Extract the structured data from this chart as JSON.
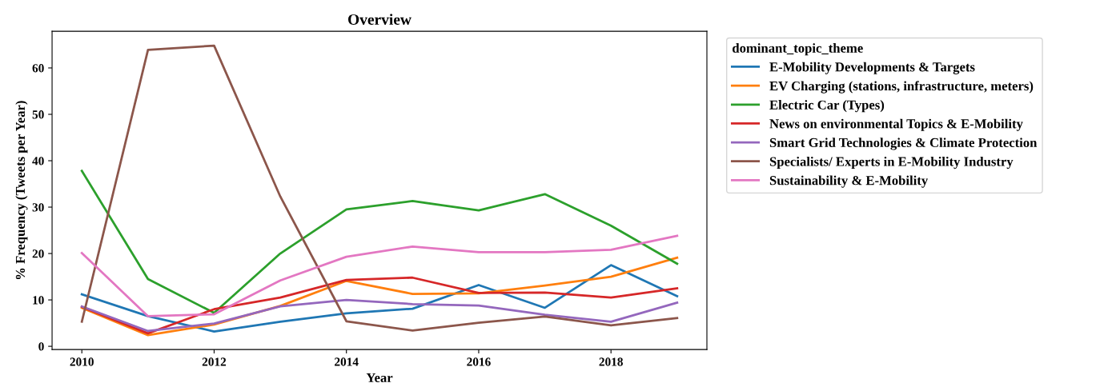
{
  "chart_data": {
    "type": "line",
    "title": "Overview",
    "xlabel": "Year",
    "ylabel": "% Frequency (Tweets per Year)",
    "legend_title": "dominant_topic_theme",
    "x": [
      2010,
      2011,
      2012,
      2013,
      2014,
      2015,
      2016,
      2017,
      2018,
      2019
    ],
    "xlim": [
      2009.55,
      2019.45
    ],
    "xticks": [
      2010,
      2012,
      2014,
      2016,
      2018
    ],
    "ylim": [
      -0.7,
      67.9
    ],
    "yticks": [
      0,
      10,
      20,
      30,
      40,
      50,
      60
    ],
    "grid": false,
    "legend": "right",
    "marker": "none",
    "line_style": "solid",
    "series": [
      {
        "name": "E-Mobility Developments & Targets",
        "color": "#1f77b4",
        "values": [
          11.2,
          6.5,
          3.2,
          5.3,
          7.1,
          8.1,
          13.2,
          8.3,
          17.5,
          10.8
        ]
      },
      {
        "name": "EV Charging (stations, infrastructure, meters)",
        "color": "#ff7f0e",
        "values": [
          8.3,
          2.4,
          4.7,
          8.7,
          14.1,
          11.3,
          11.4,
          13.1,
          15.0,
          19.1
        ]
      },
      {
        "name": "Electric Car (Types)",
        "color": "#2ca02c",
        "values": [
          37.8,
          14.5,
          7.2,
          20.0,
          29.5,
          31.3,
          29.3,
          32.8,
          26.0,
          17.8
        ]
      },
      {
        "name": "News on environmental Topics & E-Mobility",
        "color": "#d62728",
        "values": [
          8.5,
          2.8,
          8.0,
          10.5,
          14.3,
          14.8,
          11.5,
          11.6,
          10.5,
          12.5
        ]
      },
      {
        "name": "Smart Grid Technologies & Climate Protection",
        "color": "#9467bd",
        "values": [
          8.6,
          3.3,
          4.9,
          8.6,
          10.0,
          9.1,
          8.8,
          6.8,
          5.3,
          9.4
        ]
      },
      {
        "name": "Specialists/ Experts in E-Mobility Industry",
        "color": "#8c564b",
        "values": [
          5.3,
          63.9,
          64.8,
          32.3,
          5.4,
          3.4,
          5.1,
          6.4,
          4.5,
          6.1
        ]
      },
      {
        "name": "Sustainability & E-Mobility",
        "color": "#e377c2",
        "values": [
          20.1,
          6.5,
          6.9,
          14.2,
          19.3,
          21.5,
          20.3,
          20.3,
          20.8,
          23.8
        ]
      }
    ]
  }
}
